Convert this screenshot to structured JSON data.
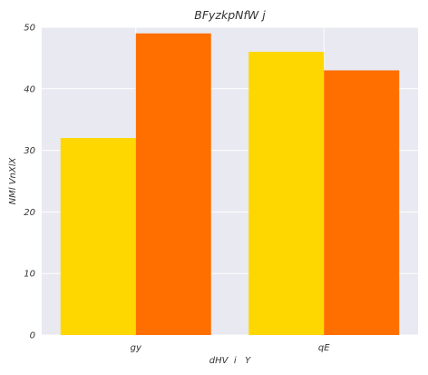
{
  "chart_data": {
    "type": "bar",
    "title": "BFyzkpNfW j",
    "xlabel": "dHV  i   Y",
    "ylabel": "NMl VnXlX",
    "categories": [
      "gy",
      "qE"
    ],
    "series": [
      {
        "color": "#FFD700",
        "values": [
          32,
          46
        ]
      },
      {
        "color": "#FF6F00",
        "values": [
          49,
          43
        ]
      }
    ],
    "ylim": [
      0,
      50
    ],
    "yticks": [
      0,
      10,
      20,
      30,
      40,
      50
    ],
    "grid": true,
    "background": "#E9E9F1",
    "grid_color": "#FFFFFF"
  }
}
